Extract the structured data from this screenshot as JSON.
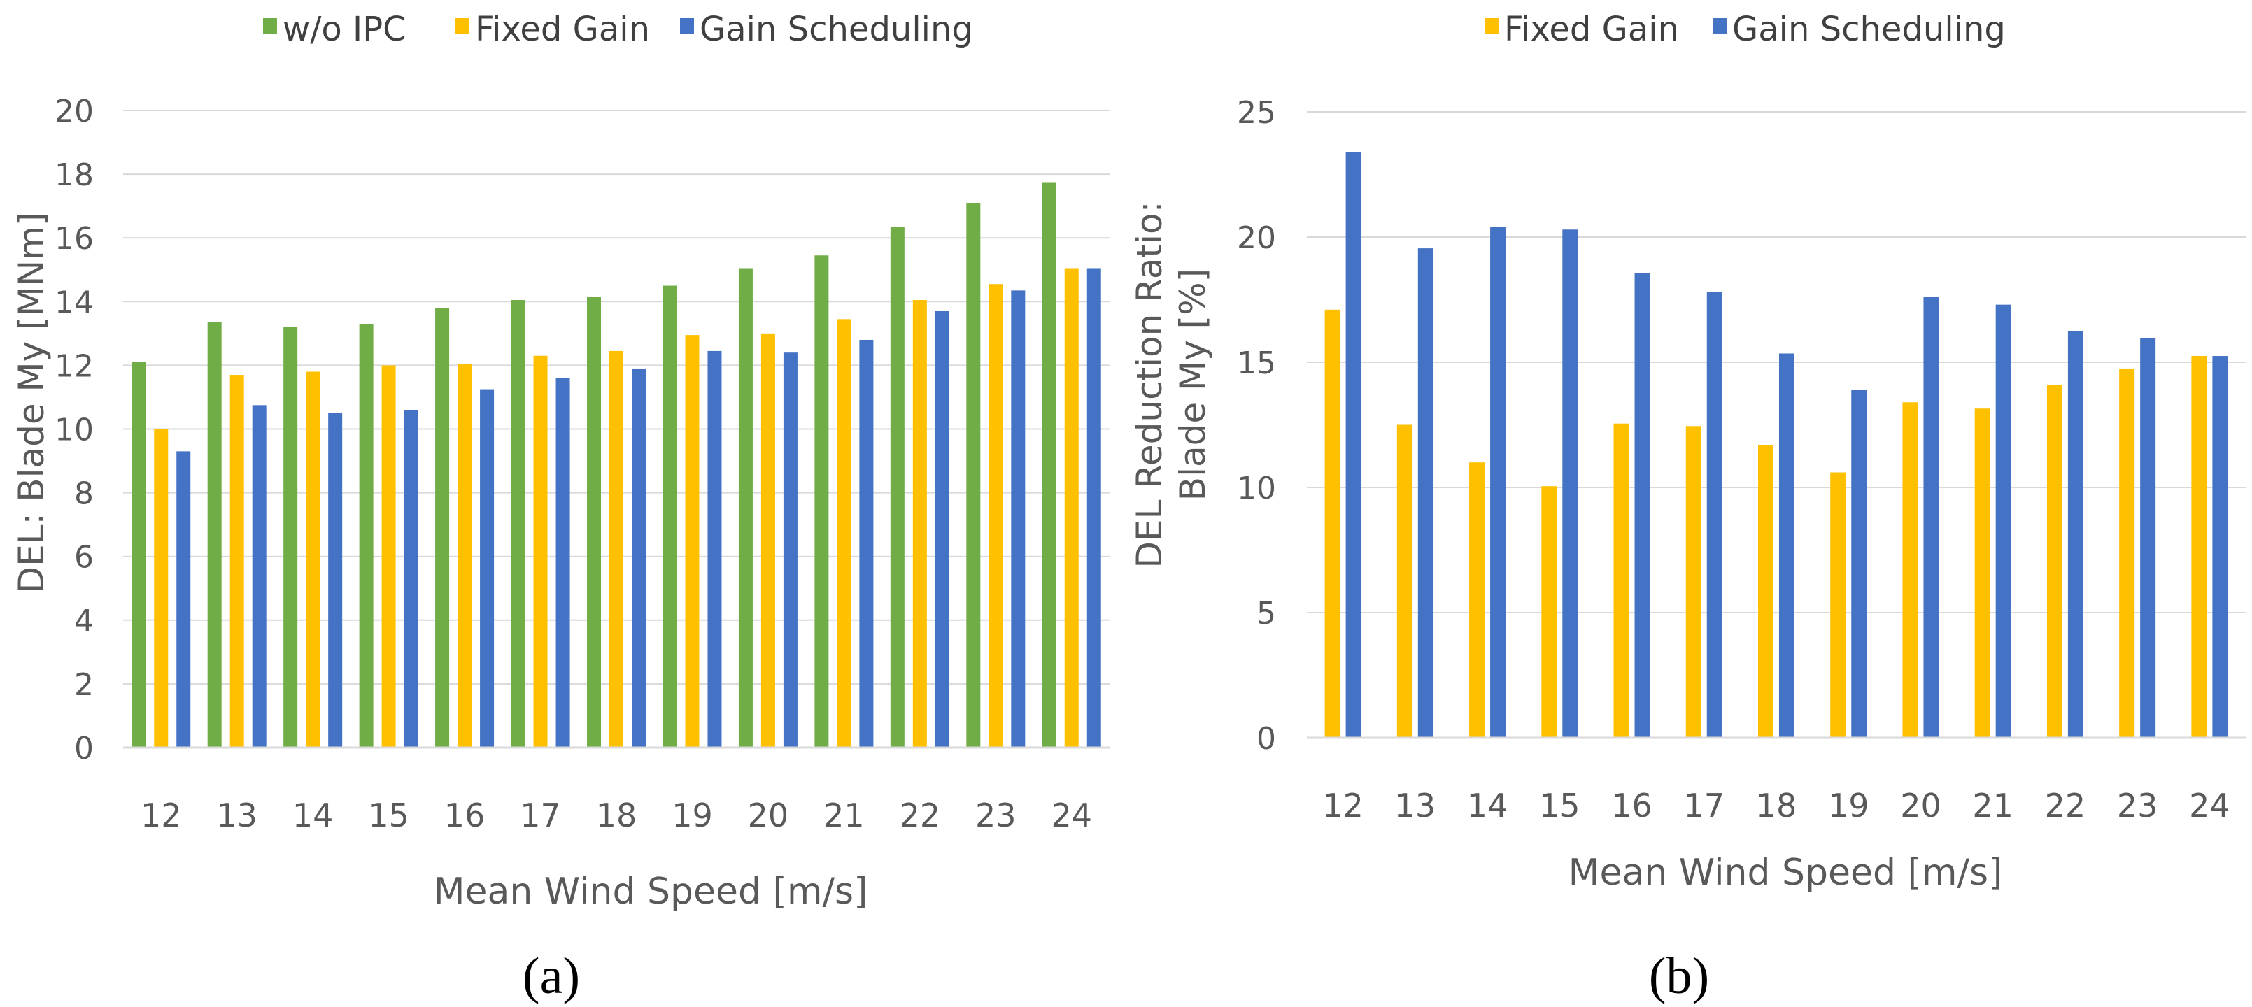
{
  "chart_data": [
    {
      "type": "bar",
      "panel_label": "(a)",
      "categories": [
        "12",
        "13",
        "14",
        "15",
        "16",
        "17",
        "18",
        "19",
        "20",
        "21",
        "22",
        "23",
        "24"
      ],
      "series": [
        {
          "name": "w/o IPC",
          "color": "#70ad47",
          "values": [
            12.1,
            13.35,
            13.2,
            13.3,
            13.8,
            14.05,
            14.15,
            14.5,
            15.05,
            15.45,
            16.35,
            17.1,
            17.75
          ]
        },
        {
          "name": "Fixed Gain",
          "color": "#ffc000",
          "values": [
            10.0,
            11.7,
            11.8,
            12.0,
            12.05,
            12.3,
            12.45,
            12.95,
            13.0,
            13.45,
            14.05,
            14.55,
            15.05
          ]
        },
        {
          "name": "Gain Scheduling",
          "color": "#4472c4",
          "values": [
            9.3,
            10.75,
            10.5,
            10.6,
            11.25,
            11.6,
            11.9,
            12.45,
            12.4,
            12.8,
            13.7,
            14.35,
            15.05
          ]
        }
      ],
      "xlabel": "Mean Wind Speed [m/s]",
      "ylabel": "DEL: Blade My [MNm]",
      "ylim": [
        0,
        20
      ],
      "yticks": [
        "0",
        "2",
        "4",
        "6",
        "8",
        "10",
        "12",
        "14",
        "16",
        "18",
        "20"
      ],
      "grid": true,
      "legend": "top-center"
    },
    {
      "type": "bar",
      "panel_label": "(b)",
      "categories": [
        "12",
        "13",
        "14",
        "15",
        "16",
        "17",
        "18",
        "19",
        "20",
        "21",
        "22",
        "23",
        "24"
      ],
      "series": [
        {
          "name": "Fixed Gain",
          "color": "#ffc000",
          "values": [
            17.1,
            12.5,
            11.0,
            10.05,
            12.55,
            12.45,
            11.7,
            10.6,
            13.4,
            13.15,
            14.1,
            14.75,
            15.25
          ]
        },
        {
          "name": "Gain Scheduling",
          "color": "#4472c4",
          "values": [
            23.4,
            19.55,
            20.4,
            20.3,
            18.55,
            17.8,
            15.35,
            13.9,
            17.6,
            17.3,
            16.25,
            15.95,
            15.25
          ]
        }
      ],
      "xlabel": "Mean Wind Speed [m/s]",
      "ylabel_line1": "DEL Reduction Ratio:",
      "ylabel_line2": "Blade My [%]",
      "ylim": [
        0,
        25
      ],
      "yticks": [
        "0",
        "5",
        "10",
        "15",
        "20",
        "25"
      ],
      "grid": true,
      "legend": "top-center"
    }
  ]
}
